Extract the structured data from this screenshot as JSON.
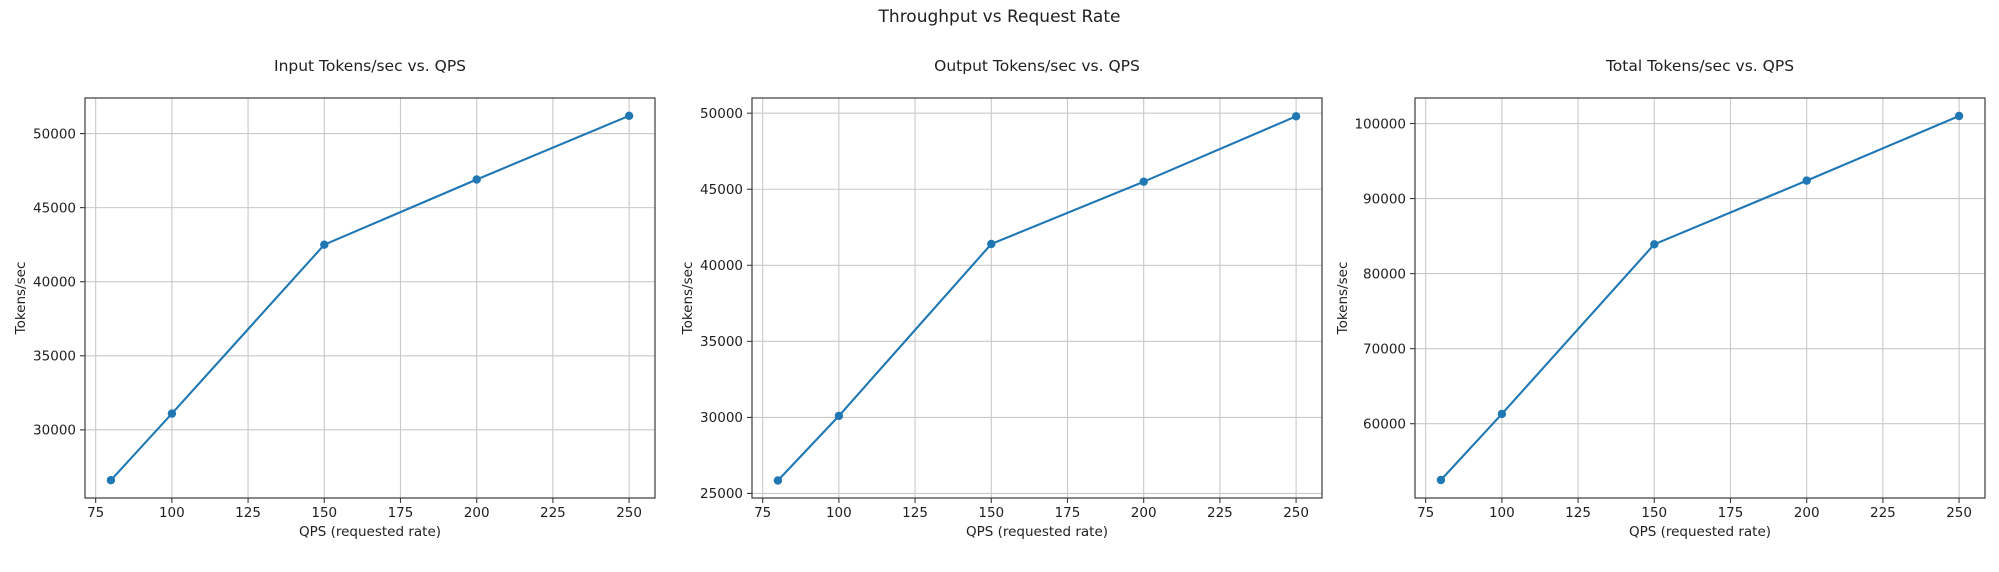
{
  "suptitle": "Throughput vs Request Rate",
  "colors": {
    "line": "#1f77b4",
    "marker": "#1f77b4",
    "grid": "#c9c9c9",
    "spine": "#3b3b3b",
    "text": "#1f1f1f",
    "background": "#ffffff"
  },
  "chart_data": [
    {
      "type": "line",
      "title": "Input Tokens/sec vs. QPS",
      "xlabel": "QPS (requested rate)",
      "ylabel": "Tokens/sec",
      "x": [
        80,
        100,
        150,
        200,
        250
      ],
      "values": [
        26600,
        31100,
        42500,
        46900,
        51200
      ],
      "xticks": [
        75,
        100,
        125,
        150,
        175,
        200,
        225,
        250
      ],
      "yticks": [
        30000,
        35000,
        40000,
        45000,
        50000
      ],
      "xlim": [
        71.5,
        258.5
      ],
      "ylim": [
        25400,
        52400
      ],
      "grid": true,
      "marker": "circle"
    },
    {
      "type": "line",
      "title": "Output Tokens/sec vs. QPS",
      "xlabel": "QPS (requested rate)",
      "ylabel": "Tokens/sec",
      "x": [
        80,
        100,
        150,
        200,
        250
      ],
      "values": [
        25850,
        30100,
        41400,
        45500,
        49800
      ],
      "xticks": [
        75,
        100,
        125,
        150,
        175,
        200,
        225,
        250
      ],
      "yticks": [
        25000,
        30000,
        35000,
        40000,
        45000,
        50000
      ],
      "xlim": [
        71.5,
        258.5
      ],
      "ylim": [
        24700,
        51000
      ],
      "grid": true,
      "marker": "circle"
    },
    {
      "type": "line",
      "title": "Total Tokens/sec vs. QPS",
      "xlabel": "QPS (requested rate)",
      "ylabel": "Tokens/sec",
      "x": [
        80,
        100,
        150,
        200,
        250
      ],
      "values": [
        52500,
        61300,
        83900,
        92400,
        101000
      ],
      "xticks": [
        75,
        100,
        125,
        150,
        175,
        200,
        225,
        250
      ],
      "yticks": [
        60000,
        70000,
        80000,
        90000,
        100000
      ],
      "xlim": [
        71.5,
        258.5
      ],
      "ylim": [
        50100,
        103400
      ],
      "grid": true,
      "marker": "circle"
    }
  ]
}
